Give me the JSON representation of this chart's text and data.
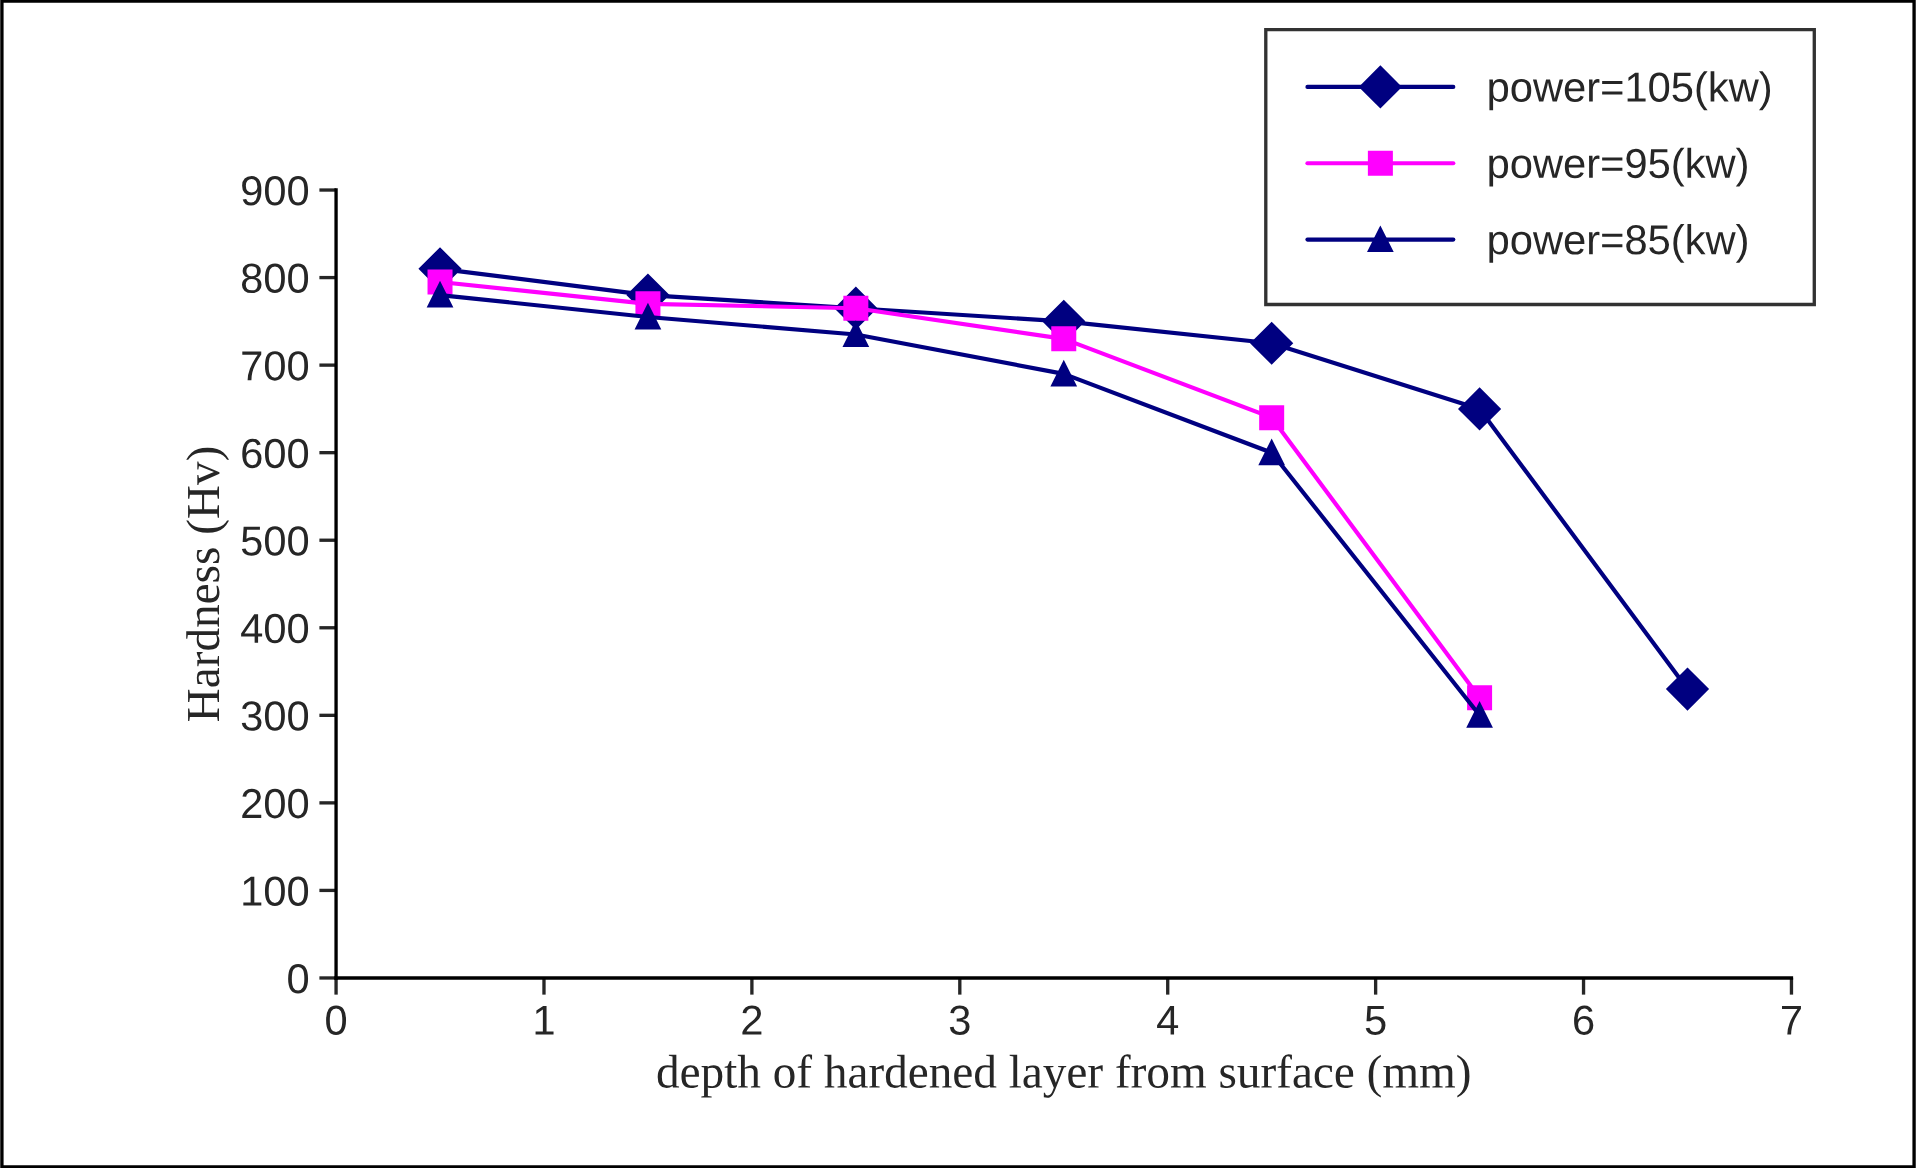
{
  "chart_data": {
    "type": "line",
    "xlabel": "depth of hardened layer from surface (mm)",
    "ylabel": "Hardness (Hv)",
    "x": [
      0.5,
      1.5,
      2.5,
      3.5,
      4.5,
      5.5,
      6.5
    ],
    "series": [
      {
        "name": "power=105(kw)",
        "color": "#000080",
        "marker": "diamond",
        "values": [
          810,
          780,
          765,
          750,
          725,
          650,
          330
        ]
      },
      {
        "name": "power=95(kw)",
        "color": "#ff00ff",
        "marker": "square",
        "values": [
          795,
          770,
          765,
          730,
          640,
          320,
          null
        ]
      },
      {
        "name": "power=85(kw)",
        "color": "#000080",
        "marker": "triangle",
        "values": [
          780,
          755,
          735,
          690,
          600,
          300,
          null
        ]
      }
    ],
    "xlim": [
      0,
      7
    ],
    "xticks": [
      0,
      1,
      2,
      3,
      4,
      5,
      6,
      7
    ],
    "ylim": [
      0,
      900
    ],
    "yticks": [
      0,
      100,
      200,
      300,
      400,
      500,
      600,
      700,
      800,
      900
    ],
    "grid": false,
    "legend": "top right",
    "line_style": "solid"
  }
}
